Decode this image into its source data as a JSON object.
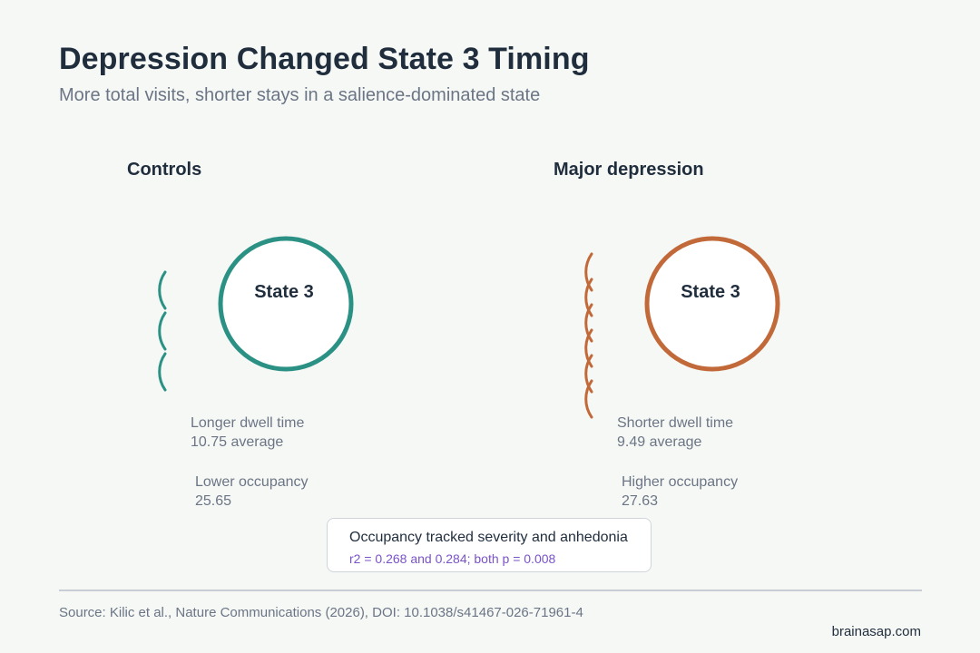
{
  "header": {
    "title": "Depression Changed State 3 Timing",
    "subtitle": "More total visits, shorter stays in a salience-dominated state"
  },
  "groups": [
    {
      "label": "Controls",
      "state_label": "State 3",
      "color": "#2a9184",
      "visit_arcs": 3,
      "dwell_label": "Longer dwell time",
      "dwell_value": "10.75 average",
      "occupancy_label": "Lower occupancy",
      "occupancy_value": "25.65"
    },
    {
      "label": "Major depression",
      "state_label": "State 3",
      "color": "#c2693a",
      "visit_arcs": 6,
      "dwell_label": "Shorter dwell time",
      "dwell_value": "9.49 average",
      "occupancy_label": "Higher occupancy",
      "occupancy_value": "27.63"
    }
  ],
  "callout": {
    "title": "Occupancy tracked severity and anhedonia",
    "stat": "r2 = 0.268 and 0.284; both p = 0.008"
  },
  "footer": {
    "source": "Source: Kilic et al., Nature Communications (2026), DOI: 10.1038/s41467-026-71961-4",
    "brand": "brainasap.com"
  }
}
